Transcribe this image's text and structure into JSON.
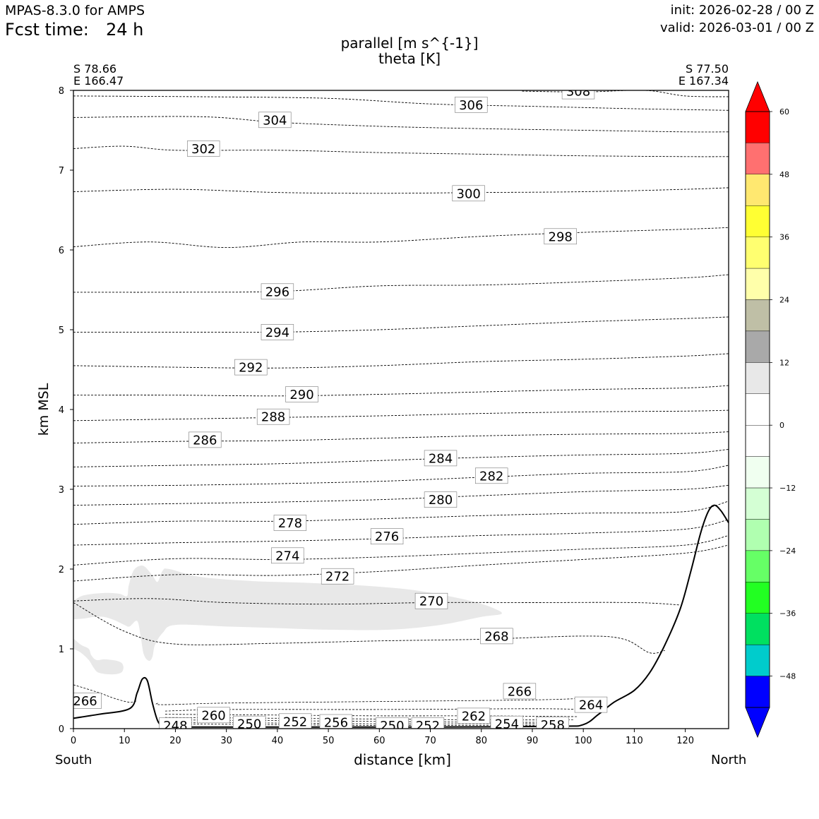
{
  "header": {
    "model": "MPAS-8.3.0 for AMPS",
    "fcst_label": "Fcst time:",
    "fcst_value": "24 h",
    "init": "init: 2026-02-28 / 00 Z",
    "valid": "valid: 2026-03-01 / 00 Z"
  },
  "endpoints": {
    "left_lat": "S 78.66",
    "left_lon": "E 166.47",
    "right_lat": "S 77.50",
    "right_lon": "E 167.34",
    "south": "South",
    "north": "North"
  },
  "chart_data": {
    "type": "cross-section",
    "title": "parallel [m s^{-1}]",
    "subtitle": "theta [K]",
    "xlabel": "distance [km]",
    "ylabel": "km MSL",
    "xlim": [
      0,
      128.5
    ],
    "ylim": [
      0,
      8
    ],
    "x_ticks": [
      "0",
      "10",
      "20",
      "30",
      "40",
      "50",
      "60",
      "70",
      "80",
      "90",
      "100",
      "110",
      "120"
    ],
    "y_ticks": [
      "0",
      "1",
      "2",
      "3",
      "4",
      "5",
      "6",
      "7",
      "8"
    ],
    "terrain": {
      "x": [
        0,
        5,
        11,
        12.5,
        13.5,
        14.5,
        15.5,
        16.5,
        17.5,
        18.5,
        25,
        50,
        70,
        95,
        100,
        103,
        106,
        110,
        113,
        116,
        119,
        121,
        123,
        124.5,
        125.7,
        127,
        128.5
      ],
      "z": [
        0.13,
        0.18,
        0.25,
        0.45,
        0.62,
        0.6,
        0.32,
        0.1,
        0.03,
        0.02,
        0.02,
        0.02,
        0.02,
        0.03,
        0.05,
        0.18,
        0.33,
        0.48,
        0.7,
        1.05,
        1.5,
        1.95,
        2.45,
        2.72,
        2.8,
        2.73,
        2.58
      ]
    },
    "theta_contours": [
      {
        "level": 268,
        "x": [
          0,
          10,
          20,
          40,
          60,
          80,
          100,
          108,
          113,
          116
        ],
        "z": [
          1.58,
          1.22,
          1.06,
          1.07,
          1.1,
          1.12,
          1.16,
          1.12,
          0.95,
          0.98
        ]
      },
      {
        "level": 270,
        "x": [
          0,
          15,
          30,
          50,
          70,
          90,
          110,
          119
        ],
        "z": [
          1.6,
          1.63,
          1.58,
          1.56,
          1.58,
          1.58,
          1.58,
          1.55
        ]
      },
      {
        "level": 272,
        "x": [
          0,
          20,
          40,
          60,
          80,
          100,
          120,
          128.5
        ],
        "z": [
          1.85,
          1.93,
          1.92,
          1.97,
          2.05,
          2.12,
          2.2,
          2.3
        ]
      },
      {
        "level": 274,
        "x": [
          0,
          20,
          40,
          60,
          80,
          100,
          120,
          128.5
        ],
        "z": [
          2.05,
          2.13,
          2.12,
          2.15,
          2.2,
          2.25,
          2.3,
          2.42
        ]
      },
      {
        "level": 276,
        "x": [
          0,
          20,
          40,
          60,
          80,
          100,
          120,
          128.5
        ],
        "z": [
          2.3,
          2.33,
          2.35,
          2.38,
          2.42,
          2.45,
          2.5,
          2.62
        ]
      },
      {
        "level": 278,
        "x": [
          0,
          20,
          40,
          60,
          80,
          100,
          120,
          128.5
        ],
        "z": [
          2.56,
          2.6,
          2.6,
          2.63,
          2.67,
          2.7,
          2.72,
          2.85
        ]
      },
      {
        "level": 280,
        "x": [
          0,
          20,
          40,
          60,
          80,
          100,
          120,
          128.5
        ],
        "z": [
          2.8,
          2.82,
          2.84,
          2.87,
          2.92,
          2.97,
          3.0,
          3.05
        ]
      },
      {
        "level": 282,
        "x": [
          0,
          20,
          40,
          60,
          80,
          100,
          120,
          128.5
        ],
        "z": [
          3.04,
          3.05,
          3.07,
          3.1,
          3.15,
          3.2,
          3.22,
          3.3
        ]
      },
      {
        "level": 284,
        "x": [
          0,
          20,
          40,
          60,
          80,
          100,
          120,
          128.5
        ],
        "z": [
          3.28,
          3.3,
          3.32,
          3.36,
          3.4,
          3.43,
          3.45,
          3.5
        ]
      },
      {
        "level": 286,
        "x": [
          0,
          20,
          40,
          60,
          80,
          100,
          120,
          128.5
        ],
        "z": [
          3.58,
          3.6,
          3.61,
          3.64,
          3.67,
          3.69,
          3.7,
          3.72
        ]
      },
      {
        "level": 288,
        "x": [
          0,
          20,
          40,
          60,
          80,
          100,
          120,
          128.5
        ],
        "z": [
          3.86,
          3.88,
          3.9,
          3.92,
          3.95,
          3.97,
          3.98,
          3.99
        ]
      },
      {
        "level": 290,
        "x": [
          0,
          20,
          40,
          60,
          80,
          100,
          120,
          128.5
        ],
        "z": [
          4.18,
          4.18,
          4.17,
          4.19,
          4.22,
          4.25,
          4.27,
          4.3
        ]
      },
      {
        "level": 292,
        "x": [
          0,
          20,
          40,
          60,
          80,
          100,
          120,
          128.5
        ],
        "z": [
          4.55,
          4.53,
          4.52,
          4.55,
          4.6,
          4.63,
          4.67,
          4.7
        ]
      },
      {
        "level": 294,
        "x": [
          0,
          20,
          40,
          60,
          80,
          100,
          120,
          128.5
        ],
        "z": [
          4.97,
          4.97,
          4.97,
          5.0,
          5.05,
          5.1,
          5.14,
          5.16
        ]
      },
      {
        "level": 296,
        "x": [
          0,
          20,
          40,
          60,
          80,
          100,
          120,
          128.5
        ],
        "z": [
          5.47,
          5.47,
          5.48,
          5.55,
          5.56,
          5.6,
          5.65,
          5.69
        ]
      },
      {
        "level": 298,
        "x": [
          0,
          15,
          30,
          45,
          60,
          80,
          100,
          120,
          128.5
        ],
        "z": [
          6.04,
          6.1,
          6.03,
          6.1,
          6.1,
          6.17,
          6.22,
          6.26,
          6.28
        ]
      },
      {
        "level": 300,
        "x": [
          0,
          20,
          40,
          60,
          80,
          100,
          120,
          128.5
        ],
        "z": [
          6.73,
          6.76,
          6.72,
          6.71,
          6.72,
          6.73,
          6.76,
          6.78
        ]
      },
      {
        "level": 302,
        "x": [
          0,
          10,
          20,
          40,
          60,
          80,
          100,
          120,
          128.5
        ],
        "z": [
          7.27,
          7.3,
          7.25,
          7.25,
          7.22,
          7.2,
          7.18,
          7.17,
          7.17
        ]
      },
      {
        "level": 304,
        "x": [
          0,
          25,
          40,
          60,
          80,
          100,
          120,
          128.5
        ],
        "z": [
          7.66,
          7.67,
          7.6,
          7.55,
          7.52,
          7.5,
          7.48,
          7.48
        ]
      },
      {
        "level": 306,
        "x": [
          0,
          25,
          50,
          70,
          90,
          110,
          128.5
        ],
        "z": [
          7.93,
          7.92,
          7.9,
          7.83,
          7.8,
          7.77,
          7.75
        ]
      },
      {
        "level": 308,
        "x": [
          88,
          100,
          112,
          120,
          128.5
        ],
        "z": [
          7.99,
          7.98,
          8.0,
          7.93,
          7.92
        ]
      }
    ],
    "low_contours": [
      {
        "level": 264,
        "x": [
          16.5,
          17.5,
          30,
          60,
          90,
          100
        ],
        "z": [
          0.32,
          0.3,
          0.32,
          0.34,
          0.36,
          0.38
        ]
      },
      {
        "level": 262,
        "x": [
          18,
          30,
          60,
          90,
          100
        ],
        "z": [
          0.22,
          0.24,
          0.24,
          0.25,
          0.24
        ]
      },
      {
        "level": 260,
        "x": [
          18,
          40,
          60,
          80,
          99
        ],
        "z": [
          0.18,
          0.17,
          0.16,
          0.16,
          0.15
        ]
      },
      {
        "level": 258,
        "x": [
          18,
          40,
          60,
          80,
          98
        ],
        "z": [
          0.14,
          0.13,
          0.12,
          0.11,
          0.11
        ]
      },
      {
        "level": 256,
        "x": [
          18,
          40,
          60,
          80,
          97
        ],
        "z": [
          0.11,
          0.1,
          0.09,
          0.08,
          0.08
        ]
      },
      {
        "level": 254,
        "x": [
          18,
          40,
          60,
          80,
          96
        ],
        "z": [
          0.08,
          0.07,
          0.06,
          0.06,
          0.06
        ]
      },
      {
        "level": 252,
        "x": [
          18,
          40,
          60,
          80,
          95
        ],
        "z": [
          0.06,
          0.05,
          0.04,
          0.04,
          0.04
        ]
      },
      {
        "level": 266,
        "x": [
          0,
          5,
          8,
          11,
          12.5
        ],
        "z": [
          0.55,
          0.45,
          0.38,
          0.33,
          0.35
        ]
      }
    ],
    "contour_labels": [
      {
        "text": "308",
        "x": 99.0,
        "z": 7.99
      },
      {
        "text": "306",
        "x": 78.0,
        "z": 7.82
      },
      {
        "text": "304",
        "x": 39.5,
        "z": 7.63
      },
      {
        "text": "302",
        "x": 25.5,
        "z": 7.27
      },
      {
        "text": "300",
        "x": 77.5,
        "z": 6.71
      },
      {
        "text": "298",
        "x": 95.5,
        "z": 6.17
      },
      {
        "text": "296",
        "x": 40.0,
        "z": 5.48
      },
      {
        "text": "294",
        "x": 40.0,
        "z": 4.97
      },
      {
        "text": "292",
        "x": 34.8,
        "z": 4.53
      },
      {
        "text": "290",
        "x": 44.8,
        "z": 4.19
      },
      {
        "text": "288",
        "x": 39.2,
        "z": 3.91
      },
      {
        "text": "286",
        "x": 25.8,
        "z": 3.62
      },
      {
        "text": "284",
        "x": 72.0,
        "z": 3.39
      },
      {
        "text": "282",
        "x": 82.0,
        "z": 3.17
      },
      {
        "text": "280",
        "x": 72.0,
        "z": 2.87
      },
      {
        "text": "278",
        "x": 42.5,
        "z": 2.58
      },
      {
        "text": "276",
        "x": 61.5,
        "z": 2.41
      },
      {
        "text": "274",
        "x": 42.0,
        "z": 2.17
      },
      {
        "text": "272",
        "x": 51.8,
        "z": 1.91
      },
      {
        "text": "270",
        "x": 70.2,
        "z": 1.6
      },
      {
        "text": "268",
        "x": 83.0,
        "z": 1.16
      },
      {
        "text": "266",
        "x": 87.5,
        "z": 0.47
      },
      {
        "text": "266",
        "x": 2.3,
        "z": 0.35
      },
      {
        "text": "264",
        "x": 101.5,
        "z": 0.3
      },
      {
        "text": "262",
        "x": 78.5,
        "z": 0.16
      },
      {
        "text": "260",
        "x": 27.5,
        "z": 0.17
      },
      {
        "text": "258",
        "x": 94.0,
        "z": 0.05
      },
      {
        "text": "256",
        "x": 51.5,
        "z": 0.08
      },
      {
        "text": "254",
        "x": 85.0,
        "z": 0.06
      },
      {
        "text": "252",
        "x": 43.5,
        "z": 0.09
      },
      {
        "text": "252",
        "x": 69.5,
        "z": 0.04
      },
      {
        "text": "250",
        "x": 34.5,
        "z": 0.06
      },
      {
        "text": "250",
        "x": 62.5,
        "z": 0.04
      },
      {
        "text": "248",
        "x": 20.0,
        "z": 0.04
      }
    ],
    "shaded_regions": [
      {
        "range": "0 to 12 m s-1",
        "color": "#e8e8e8",
        "polygon_x": [
          0,
          2,
          6,
          9,
          10.5,
          10.8,
          11.4,
          12,
          13,
          14,
          15.5,
          16.5,
          17.5,
          18.8,
          25,
          35,
          45,
          55,
          65,
          72,
          78,
          82,
          84,
          80,
          72,
          62,
          50,
          40,
          30,
          20,
          17.5,
          16,
          15.5,
          14.8,
          13.8,
          13.2,
          12.5,
          11,
          10,
          8,
          6,
          4,
          2,
          0
        ],
        "polygon_z": [
          1.6,
          1.67,
          1.7,
          1.69,
          1.66,
          1.78,
          1.92,
          2.0,
          2.04,
          2.03,
          1.92,
          1.84,
          1.98,
          2.0,
          1.9,
          1.85,
          1.83,
          1.8,
          1.75,
          1.68,
          1.6,
          1.52,
          1.44,
          1.4,
          1.3,
          1.24,
          1.24,
          1.26,
          1.28,
          1.3,
          1.2,
          1.05,
          0.9,
          0.85,
          0.93,
          1.15,
          1.35,
          1.28,
          1.3,
          1.36,
          1.4,
          1.4,
          1.38,
          1.37
        ]
      },
      {
        "range": "0 to 12 m s-1",
        "color": "#e8e8e8",
        "polygon_x": [
          0,
          1.5,
          3,
          3.5,
          4.5,
          6,
          7.5,
          8.5,
          9.5,
          9.8,
          9.3,
          7.5,
          5,
          4,
          3,
          1.5,
          0
        ],
        "polygon_z": [
          1.13,
          1.05,
          1.0,
          0.92,
          0.86,
          0.87,
          0.86,
          0.85,
          0.82,
          0.76,
          0.7,
          0.68,
          0.7,
          0.76,
          0.86,
          0.95,
          1.0
        ]
      }
    ],
    "colorbar": {
      "label_values": [
        "60",
        "48",
        "36",
        "24",
        "12",
        "0",
        "−12",
        "−24",
        "−36",
        "−48"
      ],
      "range": [
        -54,
        60
      ],
      "label_positions_value": [
        60,
        48,
        36,
        24,
        12,
        0,
        -12,
        -24,
        -36,
        -48
      ],
      "bins": [
        {
          "lo": 54,
          "hi": 60,
          "color": "#ff0000"
        },
        {
          "lo": 48,
          "hi": 54,
          "color": "#ff7070"
        },
        {
          "lo": 42,
          "hi": 48,
          "color": "#ffe870"
        },
        {
          "lo": 36,
          "hi": 42,
          "color": "#ffff33"
        },
        {
          "lo": 30,
          "hi": 36,
          "color": "#ffff70"
        },
        {
          "lo": 24,
          "hi": 30,
          "color": "#ffffaa"
        },
        {
          "lo": 18,
          "hi": 24,
          "color": "#bfbfa6"
        },
        {
          "lo": 12,
          "hi": 18,
          "color": "#a9a9a9"
        },
        {
          "lo": 6,
          "hi": 12,
          "color": "#e8e8e8"
        },
        {
          "lo": 0,
          "hi": 6,
          "color": "#ffffff"
        },
        {
          "lo": -6,
          "hi": 0,
          "color": "#ffffff"
        },
        {
          "lo": -12,
          "hi": -6,
          "color": "#f0fff0"
        },
        {
          "lo": -18,
          "hi": -12,
          "color": "#d4ffd4"
        },
        {
          "lo": -24,
          "hi": -18,
          "color": "#b0ffb0"
        },
        {
          "lo": -30,
          "hi": -24,
          "color": "#66ff66"
        },
        {
          "lo": -36,
          "hi": -30,
          "color": "#22ff22"
        },
        {
          "lo": -42,
          "hi": -36,
          "color": "#00e060"
        },
        {
          "lo": -48,
          "hi": -42,
          "color": "#00cccc"
        },
        {
          "lo": -54,
          "hi": -48,
          "color": "#0000ff"
        }
      ],
      "extend_max_color": "#ff0000",
      "extend_min_color": "#0000ff"
    }
  }
}
